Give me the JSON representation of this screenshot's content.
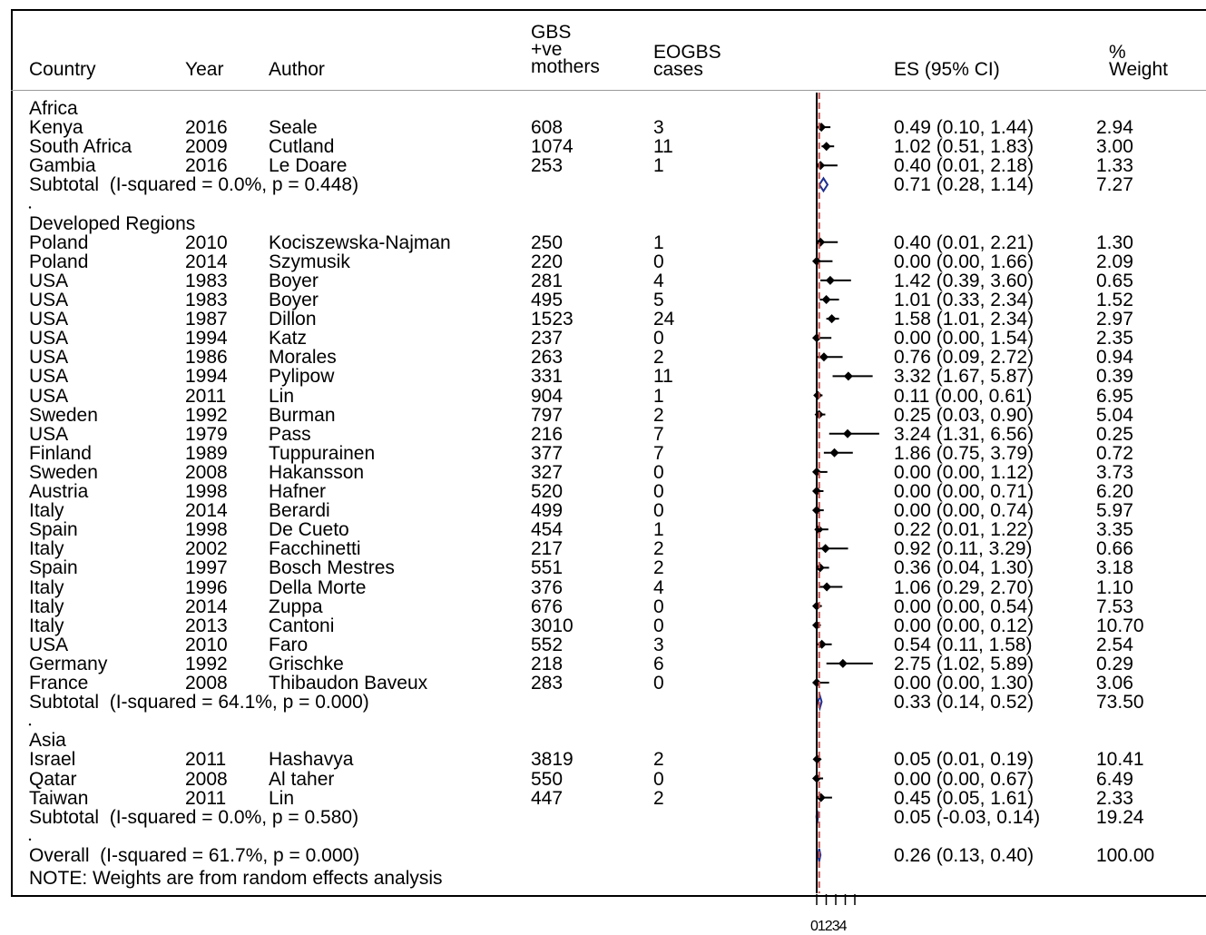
{
  "headers": {
    "country": "Country",
    "year": "Year",
    "author": "Author",
    "gbs": "GBS\n+ve\nmothers",
    "eogbs": "EOGBS\ncases",
    "es": "ES (95% CI)",
    "weight": "%\nWeight"
  },
  "rows": [
    {
      "kind": "group",
      "label": "Africa"
    },
    {
      "kind": "study",
      "country": "Kenya",
      "year": "2016",
      "author": "Seale",
      "gbs": "608",
      "cases": "3",
      "es": "0.49 (0.10, 1.44)",
      "weight": "2.94"
    },
    {
      "kind": "study",
      "country": "South Africa",
      "year": "2009",
      "author": "Cutland",
      "gbs": "1074",
      "cases": "11",
      "es": "1.02 (0.51, 1.83)",
      "weight": "3.00"
    },
    {
      "kind": "study",
      "country": "Gambia",
      "year": "2016",
      "author": "Le Doare",
      "gbs": "253",
      "cases": "1",
      "es": "0.40 (0.01, 2.18)",
      "weight": "1.33"
    },
    {
      "kind": "subtotal",
      "label": "Subtotal  (I-squared = 0.0%, p = 0.448)",
      "es": "0.71 (0.28, 1.14)",
      "weight": "7.27"
    },
    {
      "kind": "dot"
    },
    {
      "kind": "group",
      "label": "Developed Regions"
    },
    {
      "kind": "study",
      "country": "Poland",
      "year": "2010",
      "author": "Kociszewska-Najman",
      "gbs": "250",
      "cases": "1",
      "es": "0.40 (0.01, 2.21)",
      "weight": "1.30"
    },
    {
      "kind": "study",
      "country": "Poland",
      "year": "2014",
      "author": "Szymusik",
      "gbs": "220",
      "cases": "0",
      "es": "0.00 (0.00, 1.66)",
      "weight": "2.09"
    },
    {
      "kind": "study",
      "country": "USA",
      "year": "1983",
      "author": "Boyer",
      "gbs": "281",
      "cases": "4",
      "es": "1.42 (0.39, 3.60)",
      "weight": "0.65"
    },
    {
      "kind": "study",
      "country": "USA",
      "year": "1983",
      "author": "Boyer",
      "gbs": "495",
      "cases": "5",
      "es": "1.01 (0.33, 2.34)",
      "weight": "1.52"
    },
    {
      "kind": "study",
      "country": "USA",
      "year": "1987",
      "author": "Dillon",
      "gbs": "1523",
      "cases": "24",
      "es": "1.58 (1.01, 2.34)",
      "weight": "2.97"
    },
    {
      "kind": "study",
      "country": "USA",
      "year": "1994",
      "author": "Katz",
      "gbs": "237",
      "cases": "0",
      "es": "0.00 (0.00, 1.54)",
      "weight": "2.35"
    },
    {
      "kind": "study",
      "country": "USA",
      "year": "1986",
      "author": "Morales",
      "gbs": "263",
      "cases": "2",
      "es": "0.76 (0.09, 2.72)",
      "weight": "0.94"
    },
    {
      "kind": "study",
      "country": "USA",
      "year": "1994",
      "author": "Pylipow",
      "gbs": "331",
      "cases": "11",
      "es": "3.32 (1.67, 5.87)",
      "weight": "0.39"
    },
    {
      "kind": "study",
      "country": "USA",
      "year": "2011",
      "author": "Lin",
      "gbs": "904",
      "cases": "1",
      "es": "0.11 (0.00, 0.61)",
      "weight": "6.95"
    },
    {
      "kind": "study",
      "country": "Sweden",
      "year": "1992",
      "author": "Burman",
      "gbs": "797",
      "cases": "2",
      "es": "0.25 (0.03, 0.90)",
      "weight": "5.04"
    },
    {
      "kind": "study",
      "country": "USA",
      "year": "1979",
      "author": "Pass",
      "gbs": "216",
      "cases": "7",
      "es": "3.24 (1.31, 6.56)",
      "weight": "0.25"
    },
    {
      "kind": "study",
      "country": "Finland",
      "year": "1989",
      "author": "Tuppurainen",
      "gbs": "377",
      "cases": "7",
      "es": "1.86 (0.75, 3.79)",
      "weight": "0.72"
    },
    {
      "kind": "study",
      "country": "Sweden",
      "year": "2008",
      "author": "Hakansson",
      "gbs": "327",
      "cases": "0",
      "es": "0.00 (0.00, 1.12)",
      "weight": "3.73"
    },
    {
      "kind": "study",
      "country": "Austria",
      "year": "1998",
      "author": "Hafner",
      "gbs": "520",
      "cases": "0",
      "es": "0.00 (0.00, 0.71)",
      "weight": "6.20"
    },
    {
      "kind": "study",
      "country": "Italy",
      "year": "2014",
      "author": "Berardi",
      "gbs": "499",
      "cases": "0",
      "es": "0.00 (0.00, 0.74)",
      "weight": "5.97"
    },
    {
      "kind": "study",
      "country": "Spain",
      "year": "1998",
      "author": "De Cueto",
      "gbs": "454",
      "cases": "1",
      "es": "0.22 (0.01, 1.22)",
      "weight": "3.35"
    },
    {
      "kind": "study",
      "country": "Italy",
      "year": "2002",
      "author": "Facchinetti",
      "gbs": "217",
      "cases": "2",
      "es": "0.92 (0.11, 3.29)",
      "weight": "0.66"
    },
    {
      "kind": "study",
      "country": "Spain",
      "year": "1997",
      "author": "Bosch Mestres",
      "gbs": "551",
      "cases": "2",
      "es": "0.36 (0.04, 1.30)",
      "weight": "3.18"
    },
    {
      "kind": "study",
      "country": "Italy",
      "year": "1996",
      "author": "Della Morte",
      "gbs": "376",
      "cases": "4",
      "es": "1.06 (0.29, 2.70)",
      "weight": "1.10"
    },
    {
      "kind": "study",
      "country": "Italy",
      "year": "2014",
      "author": "Zuppa",
      "gbs": "676",
      "cases": "0",
      "es": "0.00 (0.00, 0.54)",
      "weight": "7.53"
    },
    {
      "kind": "study",
      "country": "Italy",
      "year": "2013",
      "author": "Cantoni",
      "gbs": "3010",
      "cases": "0",
      "es": "0.00 (0.00, 0.12)",
      "weight": "10.70"
    },
    {
      "kind": "study",
      "country": "USA",
      "year": "2010",
      "author": "Faro",
      "gbs": "552",
      "cases": "3",
      "es": "0.54 (0.11, 1.58)",
      "weight": "2.54"
    },
    {
      "kind": "study",
      "country": "Germany",
      "year": "1992",
      "author": "Grischke",
      "gbs": "218",
      "cases": "6",
      "es": "2.75 (1.02, 5.89)",
      "weight": "0.29"
    },
    {
      "kind": "study",
      "country": "France",
      "year": "2008",
      "author": "Thibaudon Baveux",
      "gbs": "283",
      "cases": "0",
      "es": "0.00 (0.00, 1.30)",
      "weight": "3.06"
    },
    {
      "kind": "subtotal",
      "label": "Subtotal  (I-squared = 64.1%, p = 0.000)",
      "es": "0.33 (0.14, 0.52)",
      "weight": "73.50"
    },
    {
      "kind": "dot"
    },
    {
      "kind": "group",
      "label": "Asia"
    },
    {
      "kind": "study",
      "country": "Israel",
      "year": "2011",
      "author": "Hashavya",
      "gbs": "3819",
      "cases": "2",
      "es": "0.05 (0.01, 0.19)",
      "weight": "10.41"
    },
    {
      "kind": "study",
      "country": "Qatar",
      "year": "2008",
      "author": "Al taher",
      "gbs": "550",
      "cases": "0",
      "es": "0.00 (0.00, 0.67)",
      "weight": "6.49"
    },
    {
      "kind": "study",
      "country": "Taiwan",
      "year": "2011",
      "author": "Lin",
      "gbs": "447",
      "cases": "2",
      "es": "0.45 (0.05, 1.61)",
      "weight": "2.33"
    },
    {
      "kind": "subtotal",
      "label": "Subtotal  (I-squared = 0.0%, p = 0.580)",
      "es": "0.05 (-0.03, 0.14)",
      "weight": "19.24"
    },
    {
      "kind": "dot"
    },
    {
      "kind": "overall",
      "label": "Overall  (I-squared = 61.7%, p = 0.000)",
      "es": "0.26 (0.13, 0.40)",
      "weight": "100.00"
    },
    {
      "kind": "note",
      "label": "NOTE: Weights are from random effects analysis"
    }
  ],
  "chart_data": {
    "type": "forest",
    "xlim": [
      0,
      4
    ],
    "x_ticks": [
      0,
      1,
      2,
      3,
      4
    ],
    "x_tick_text": "01234",
    "reference_line": 0,
    "overall_line": 0.26,
    "studies": [
      {
        "label": "Seale 2016",
        "es": 0.49,
        "lo": 0.1,
        "hi": 1.44
      },
      {
        "label": "Cutland 2009",
        "es": 1.02,
        "lo": 0.51,
        "hi": 1.83
      },
      {
        "label": "Le Doare 2016",
        "es": 0.4,
        "lo": 0.01,
        "hi": 2.18
      },
      {
        "label": "Kociszewska-Najman 2010",
        "es": 0.4,
        "lo": 0.01,
        "hi": 2.21
      },
      {
        "label": "Szymusik 2014",
        "es": 0.0,
        "lo": 0.0,
        "hi": 1.66
      },
      {
        "label": "Boyer 1983",
        "es": 1.42,
        "lo": 0.39,
        "hi": 3.6
      },
      {
        "label": "Boyer 1983",
        "es": 1.01,
        "lo": 0.33,
        "hi": 2.34
      },
      {
        "label": "Dillon 1987",
        "es": 1.58,
        "lo": 1.01,
        "hi": 2.34
      },
      {
        "label": "Katz 1994",
        "es": 0.0,
        "lo": 0.0,
        "hi": 1.54
      },
      {
        "label": "Morales 1986",
        "es": 0.76,
        "lo": 0.09,
        "hi": 2.72
      },
      {
        "label": "Pylipow 1994",
        "es": 3.32,
        "lo": 1.67,
        "hi": 5.87
      },
      {
        "label": "Lin 2011",
        "es": 0.11,
        "lo": 0.0,
        "hi": 0.61
      },
      {
        "label": "Burman 1992",
        "es": 0.25,
        "lo": 0.03,
        "hi": 0.9
      },
      {
        "label": "Pass 1979",
        "es": 3.24,
        "lo": 1.31,
        "hi": 6.56
      },
      {
        "label": "Tuppurainen 1989",
        "es": 1.86,
        "lo": 0.75,
        "hi": 3.79
      },
      {
        "label": "Hakansson 2008",
        "es": 0.0,
        "lo": 0.0,
        "hi": 1.12
      },
      {
        "label": "Hafner 1998",
        "es": 0.0,
        "lo": 0.0,
        "hi": 0.71
      },
      {
        "label": "Berardi 2014",
        "es": 0.0,
        "lo": 0.0,
        "hi": 0.74
      },
      {
        "label": "De Cueto 1998",
        "es": 0.22,
        "lo": 0.01,
        "hi": 1.22
      },
      {
        "label": "Facchinetti 2002",
        "es": 0.92,
        "lo": 0.11,
        "hi": 3.29
      },
      {
        "label": "Bosch Mestres 1997",
        "es": 0.36,
        "lo": 0.04,
        "hi": 1.3
      },
      {
        "label": "Della Morte 1996",
        "es": 1.06,
        "lo": 0.29,
        "hi": 2.7
      },
      {
        "label": "Zuppa 2014",
        "es": 0.0,
        "lo": 0.0,
        "hi": 0.54
      },
      {
        "label": "Cantoni 2013",
        "es": 0.0,
        "lo": 0.0,
        "hi": 0.12
      },
      {
        "label": "Faro 2010",
        "es": 0.54,
        "lo": 0.11,
        "hi": 1.58
      },
      {
        "label": "Grischke 1992",
        "es": 2.75,
        "lo": 1.02,
        "hi": 5.89
      },
      {
        "label": "Thibaudon Baveux 2008",
        "es": 0.0,
        "lo": 0.0,
        "hi": 1.3
      },
      {
        "label": "Hashavya 2011",
        "es": 0.05,
        "lo": 0.01,
        "hi": 0.19
      },
      {
        "label": "Al taher 2008",
        "es": 0.0,
        "lo": 0.0,
        "hi": 0.67
      },
      {
        "label": "Lin 2011",
        "es": 0.45,
        "lo": 0.05,
        "hi": 1.61
      }
    ],
    "pooled": [
      {
        "label": "Africa subtotal",
        "es": 0.71,
        "lo": 0.28,
        "hi": 1.14
      },
      {
        "label": "Developed Regions subtotal",
        "es": 0.33,
        "lo": 0.14,
        "hi": 0.52
      },
      {
        "label": "Asia subtotal",
        "es": 0.05,
        "lo": -0.03,
        "hi": 0.14
      },
      {
        "label": "Overall",
        "es": 0.26,
        "lo": 0.13,
        "hi": 0.4
      }
    ],
    "colors": {
      "marker": "#000000",
      "diamond": "#1f2f8f",
      "overall_line": "#c0504d",
      "axis": "#000000"
    }
  }
}
